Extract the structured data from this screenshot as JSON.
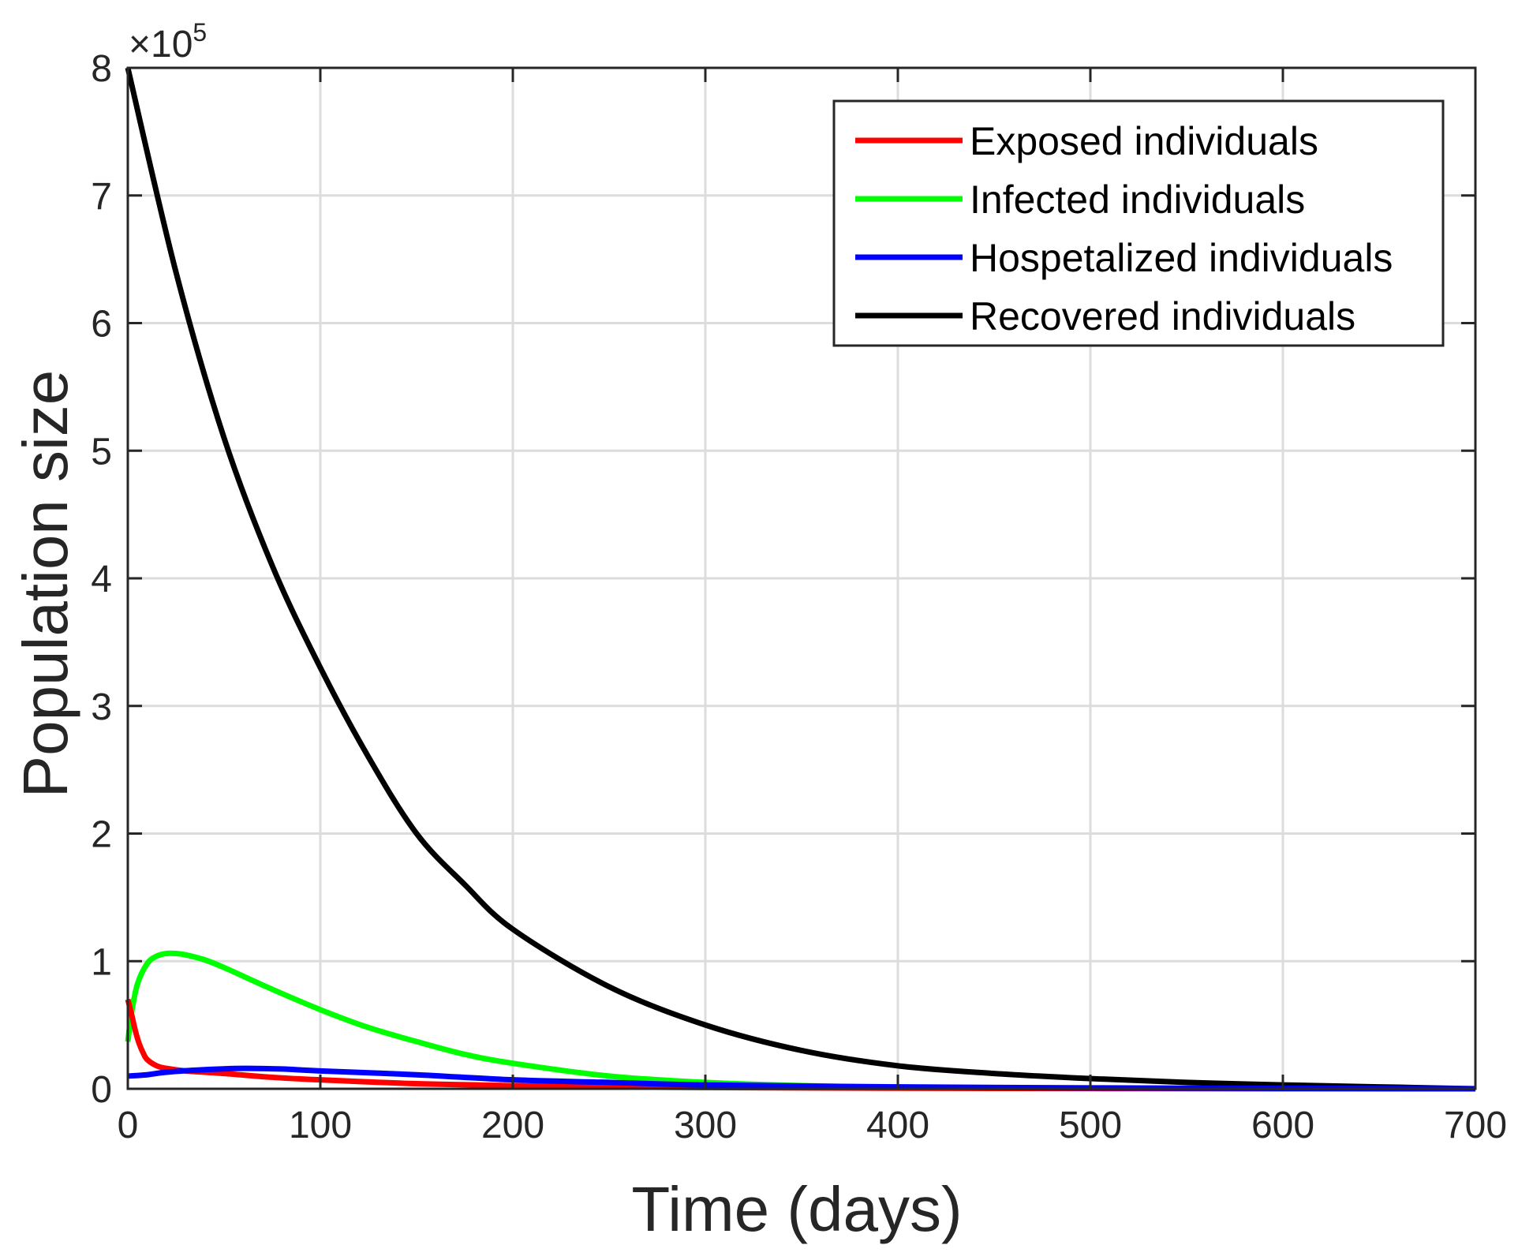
{
  "chart_data": {
    "type": "line",
    "title": "",
    "xlabel": "Time (days)",
    "ylabel": "Population size",
    "y_multiplier_base": "×10",
    "y_multiplier_exponent": "5",
    "xlim": [
      0,
      700
    ],
    "ylim": [
      0,
      8
    ],
    "x_ticks": [
      0,
      100,
      200,
      300,
      400,
      500,
      600,
      700
    ],
    "y_ticks": [
      0,
      1,
      2,
      3,
      4,
      5,
      6,
      7,
      8
    ],
    "x_tick_labels": [
      "0",
      "100",
      "200",
      "300",
      "400",
      "500",
      "600",
      "700"
    ],
    "y_tick_labels": [
      "0",
      "1",
      "2",
      "3",
      "4",
      "5",
      "6",
      "7",
      "8"
    ],
    "grid": true,
    "legend_position": "top-right",
    "series": [
      {
        "name": "Exposed individuals",
        "color": "#ff0000",
        "x": [
          0,
          2,
          4,
          6,
          8,
          10,
          15,
          20,
          30,
          50,
          75,
          100,
          150,
          200,
          250,
          300,
          400,
          500,
          600,
          700
        ],
        "y": [
          0.7,
          0.58,
          0.45,
          0.35,
          0.28,
          0.23,
          0.18,
          0.16,
          0.14,
          0.12,
          0.09,
          0.07,
          0.04,
          0.025,
          0.015,
          0.01,
          0.005,
          0.002,
          0.001,
          0.0
        ]
      },
      {
        "name": "Infected individuals",
        "color": "#00ff00",
        "x": [
          0,
          2,
          5,
          10,
          15,
          20,
          25,
          30,
          40,
          50,
          75,
          100,
          125,
          150,
          175,
          200,
          250,
          300,
          350,
          400,
          500,
          600,
          700
        ],
        "y": [
          0.37,
          0.6,
          0.82,
          0.98,
          1.04,
          1.06,
          1.06,
          1.05,
          1.01,
          0.95,
          0.78,
          0.62,
          0.48,
          0.37,
          0.27,
          0.2,
          0.1,
          0.05,
          0.025,
          0.012,
          0.004,
          0.001,
          0.0
        ]
      },
      {
        "name": "Hospetalized individuals",
        "color": "#0000ff",
        "x": [
          0,
          10,
          20,
          40,
          60,
          80,
          100,
          150,
          200,
          250,
          300,
          400,
          500,
          600,
          700
        ],
        "y": [
          0.1,
          0.11,
          0.13,
          0.15,
          0.16,
          0.155,
          0.14,
          0.11,
          0.07,
          0.05,
          0.03,
          0.015,
          0.007,
          0.003,
          0.001
        ]
      },
      {
        "name": "Recovered individuals",
        "color": "#000000",
        "x": [
          0,
          25,
          50,
          75,
          100,
          125,
          150,
          175,
          200,
          250,
          300,
          350,
          400,
          450,
          500,
          550,
          600,
          650,
          700
        ],
        "y": [
          8.0,
          6.4,
          5.1,
          4.1,
          3.3,
          2.6,
          2.0,
          1.6,
          1.25,
          0.8,
          0.5,
          0.3,
          0.18,
          0.12,
          0.08,
          0.05,
          0.03,
          0.015,
          0.0
        ]
      }
    ]
  }
}
